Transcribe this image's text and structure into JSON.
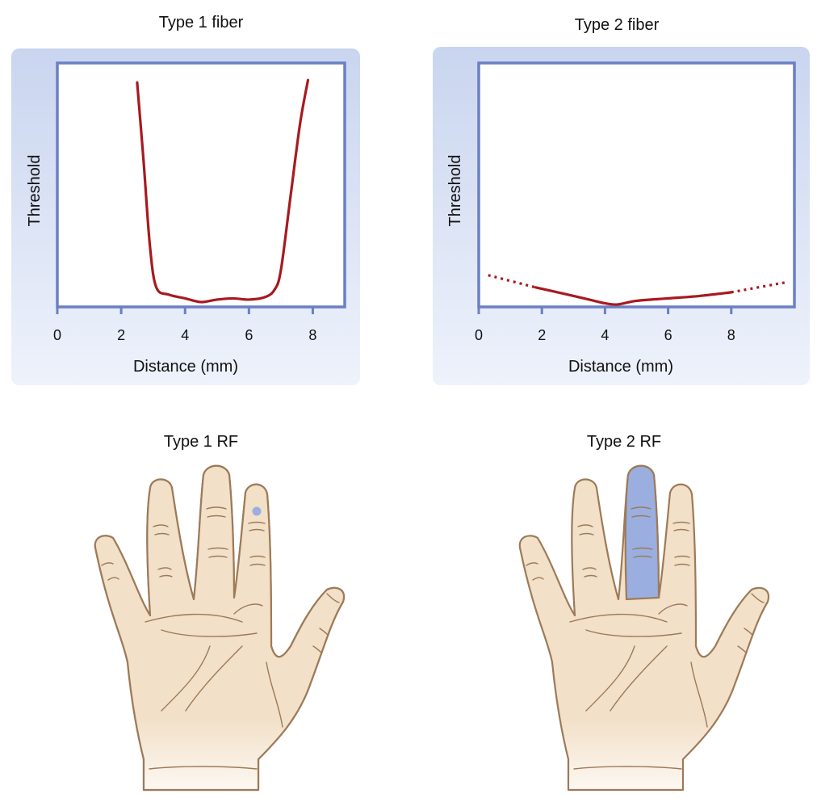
{
  "chart_data": [
    {
      "type": "line",
      "title": "Type 1 fiber",
      "xlabel": "Distance (mm)",
      "ylabel": "Threshold",
      "xlim": [
        0,
        9
      ],
      "x_ticks": [
        "0",
        "2",
        "4",
        "6",
        "8"
      ],
      "series": [
        {
          "x": [
            2.5,
            2.7,
            2.9,
            3.1,
            3.5,
            4.0,
            4.5,
            5.0,
            5.5,
            6.0,
            6.5,
            6.8,
            7.0,
            7.3,
            7.6,
            7.85
          ],
          "y": [
            0.92,
            0.6,
            0.25,
            0.08,
            0.05,
            0.035,
            0.02,
            0.03,
            0.035,
            0.03,
            0.04,
            0.07,
            0.15,
            0.45,
            0.75,
            0.93
          ]
        }
      ]
    },
    {
      "type": "line",
      "title": "Type 2 fiber",
      "xlabel": "Distance (mm)",
      "ylabel": "Threshold",
      "xlim": [
        0,
        10
      ],
      "x_ticks": [
        "0",
        "2",
        "4",
        "6",
        "8"
      ],
      "series": [
        {
          "style": "solid",
          "x": [
            1.8,
            2.5,
            3.5,
            4.0,
            4.4,
            5.0,
            6.0,
            7.0,
            8.0
          ],
          "y": [
            0.08,
            0.06,
            0.03,
            0.015,
            0.01,
            0.025,
            0.035,
            0.045,
            0.06
          ]
        },
        {
          "style": "dotted",
          "x": [
            0.3,
            1.8
          ],
          "y": [
            0.13,
            0.08
          ]
        },
        {
          "style": "dotted",
          "x": [
            8.0,
            9.7
          ],
          "y": [
            0.06,
            0.1
          ]
        }
      ]
    }
  ],
  "rf_panels": [
    {
      "title": "Type 1 RF",
      "highlight": "dot on ring-finger tip",
      "highlight_color": "#9aaee0"
    },
    {
      "title": "Type 2 RF",
      "highlight": "entire middle finger",
      "highlight_color": "#9aaee0"
    }
  ],
  "colors": {
    "axis": "#6b7fc4",
    "curve": "#a8191f",
    "skin": "#f2e0c8",
    "skin_outline": "#9d7a58",
    "panel": "#cfd9f0"
  }
}
